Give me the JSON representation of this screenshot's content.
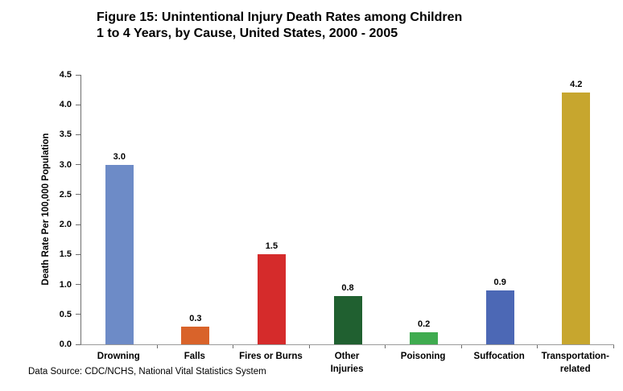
{
  "title": {
    "line1": "Figure 15: Unintentional Injury Death Rates among Children",
    "line2": "1 to 4 Years, by Cause, United States, 2000 - 2005"
  },
  "chart_data": {
    "type": "bar",
    "title": "Figure 15: Unintentional Injury Death Rates among Children 1 to 4 Years, by Cause, United States, 2000 - 2005",
    "categories": [
      "Drowning",
      "Falls",
      "Fires or Burns",
      "Other\nInjuries",
      "Poisoning",
      "Suffocation",
      "Transportation-\nrelated"
    ],
    "values": [
      3.0,
      0.3,
      1.5,
      0.8,
      0.2,
      0.9,
      4.2
    ],
    "value_labels": [
      "3.0",
      "0.3",
      "1.5",
      "0.8",
      "0.2",
      "0.9",
      "4.2"
    ],
    "bar_colors": [
      "#6d8bc7",
      "#d9632a",
      "#d52b2b",
      "#206030",
      "#3fab4f",
      "#4c68b5",
      "#c7a62e"
    ],
    "xlabel": "",
    "ylabel": "Death Rate Per 100,000 Population",
    "ylim": [
      0,
      4.5
    ],
    "ytick_step": 0.5,
    "yticks": [
      "4.5",
      "4.0",
      "3.5",
      "3.0",
      "2.5",
      "2.0",
      "1.5",
      "1.0",
      "0.5",
      "0.0"
    ],
    "grid": false,
    "legend": "none",
    "axis_color": "#6e6e6e"
  },
  "footer": {
    "data_source": "Data Source: CDC/NCHS, National Vital Statistics System"
  }
}
